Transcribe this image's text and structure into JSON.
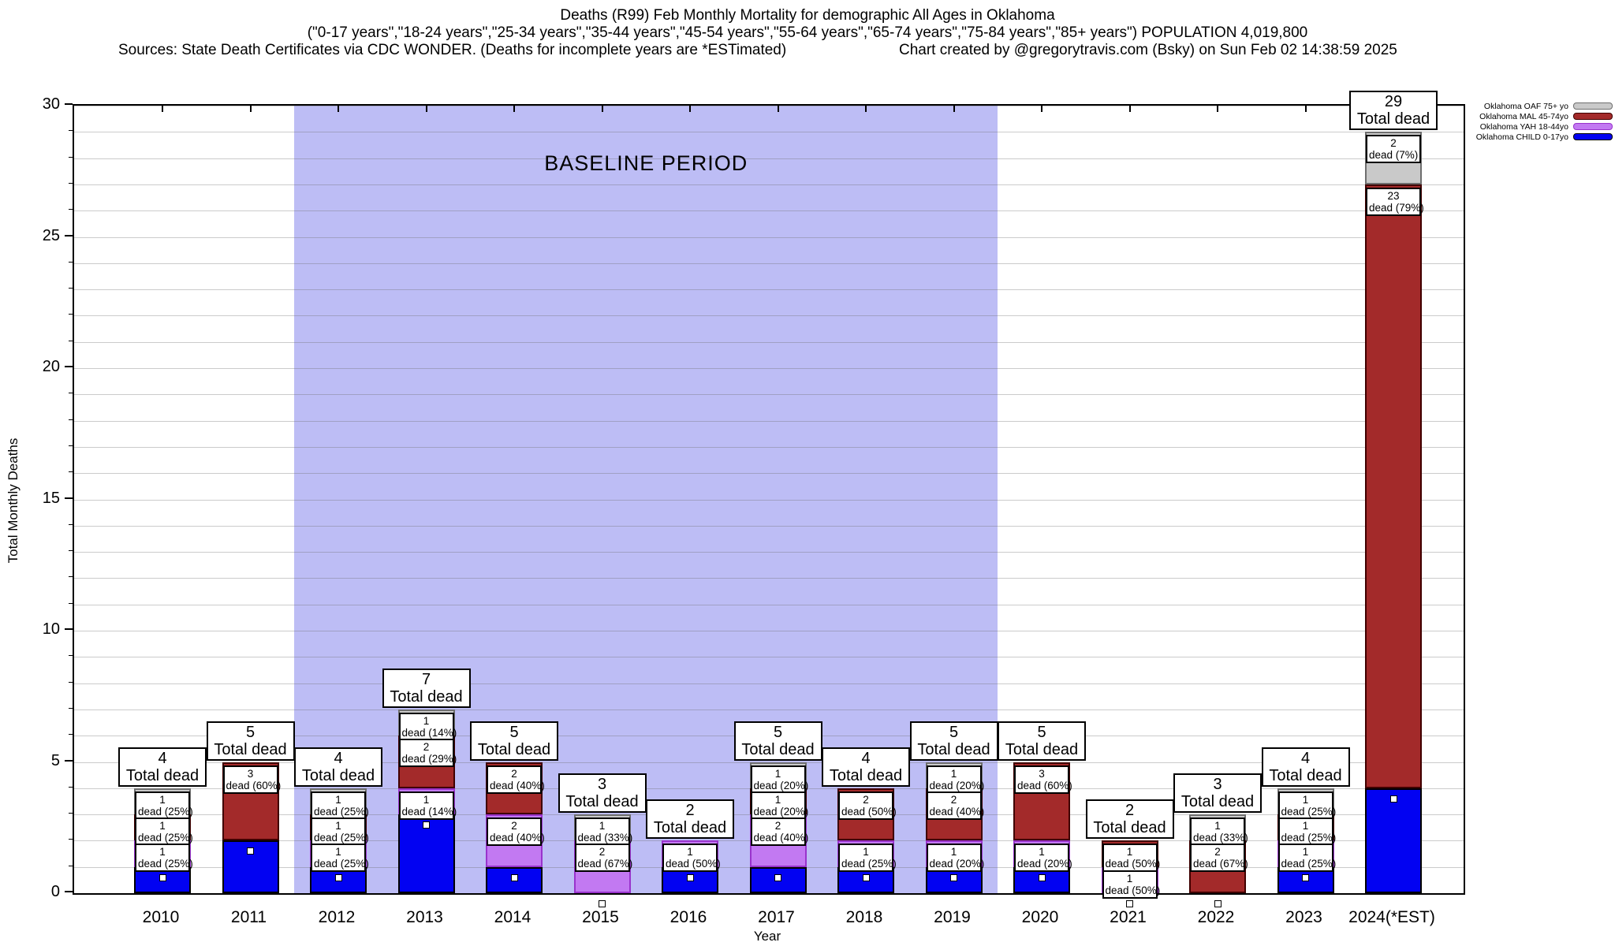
{
  "header": {
    "title": "Deaths (R99) Feb Monthly Mortality for demographic All Ages in Oklahoma",
    "subtitle": "(\"0-17 years\",\"18-24 years\",\"25-34 years\",\"35-44 years\",\"45-54 years\",\"55-64 years\",\"65-74 years\",\"75-84 years\",\"85+ years\") POPULATION 4,019,800",
    "sources": "Sources: State Death Certificates via CDC WONDER. (Deaths for incomplete years are *ESTimated)",
    "credit": "Chart created by @gregorytravis.com (Bsky) on Sun Feb 02 14:38:59 2025"
  },
  "legend": [
    {
      "label": "Oklahoma OAF 75+ yo",
      "color": "#c9c9c9",
      "border": "#6e6e6e"
    },
    {
      "label": "Oklahoma MAL 45-74yo",
      "color": "#a32a2a",
      "border": "#400000"
    },
    {
      "label": "Oklahoma YAH 18-44yo",
      "color": "#c279f2",
      "border": "#9933cc"
    },
    {
      "label": "Oklahoma CHILD 0-17yo",
      "color": "#0202f2",
      "border": "#000000"
    }
  ],
  "chart_data": {
    "type": "bar",
    "stacked": true,
    "title": "Deaths (R99) Feb Monthly Mortality for demographic All Ages in Oklahoma",
    "xlabel": "Year",
    "ylabel": "Total Monthly Deaths",
    "ylim": [
      0,
      30
    ],
    "yticks": [
      0,
      5,
      10,
      15,
      20,
      25,
      30
    ],
    "grid": "every 1 unit, light gray",
    "legend_position": "top-right outside",
    "categories": [
      "2010",
      "2011",
      "2012",
      "2013",
      "2014",
      "2015",
      "2016",
      "2017",
      "2018",
      "2019",
      "2020",
      "2021",
      "2022",
      "2023",
      "2024(*EST)"
    ],
    "series": [
      {
        "key": "child",
        "name": "Oklahoma CHILD 0-17yo",
        "color": "#0202f2",
        "border": "#000000",
        "values": [
          1,
          2,
          1,
          3,
          1,
          0,
          1,
          1,
          1,
          1,
          1,
          0,
          0,
          1,
          4
        ]
      },
      {
        "key": "yah",
        "name": "Oklahoma YAH 18-44yo",
        "color": "#c279f2",
        "border": "#9933cc",
        "values": [
          1,
          0,
          1,
          1,
          2,
          2,
          1,
          2,
          1,
          1,
          1,
          1,
          0,
          1,
          0
        ]
      },
      {
        "key": "mal",
        "name": "Oklahoma MAL 45-74yo",
        "color": "#a32a2a",
        "border": "#400000",
        "values": [
          1,
          3,
          1,
          2,
          2,
          0,
          0,
          1,
          2,
          2,
          3,
          1,
          2,
          1,
          23
        ]
      },
      {
        "key": "oaf",
        "name": "Oklahoma OAF 75+ yo",
        "color": "#c9c9c9",
        "border": "#6e6e6e",
        "values": [
          1,
          0,
          1,
          1,
          0,
          1,
          0,
          1,
          0,
          1,
          0,
          0,
          1,
          1,
          2
        ]
      }
    ],
    "totals": [
      4,
      5,
      4,
      7,
      5,
      3,
      2,
      5,
      4,
      5,
      5,
      2,
      3,
      4,
      29
    ],
    "total_label": "Total dead",
    "segment_pcts": [
      {
        "yah": "25%",
        "mal": "25%",
        "oaf": "25%"
      },
      {
        "mal": "60%"
      },
      {
        "yah": "25%",
        "mal": "25%",
        "oaf": "25%"
      },
      {
        "yah": "14%",
        "mal": "29%",
        "oaf": "14%"
      },
      {
        "yah": "40%",
        "mal": "40%"
      },
      {
        "yah": "67%",
        "oaf": "33%"
      },
      {
        "yah": "50%"
      },
      {
        "yah": "40%",
        "mal": "20%",
        "oaf": "20%"
      },
      {
        "yah": "25%",
        "mal": "50%"
      },
      {
        "yah": "20%",
        "mal": "40%",
        "oaf": "20%"
      },
      {
        "yah": "20%",
        "mal": "60%"
      },
      {
        "yah": "50%",
        "mal": "50%"
      },
      {
        "mal": "67%",
        "oaf": "33%"
      },
      {
        "yah": "25%",
        "mal": "25%",
        "oaf": "25%"
      },
      {
        "mal": "79%",
        "oaf": "7%"
      }
    ],
    "baseline": {
      "label": "BASELINE PERIOD",
      "from_category": "2012",
      "to_category": "2019"
    }
  }
}
